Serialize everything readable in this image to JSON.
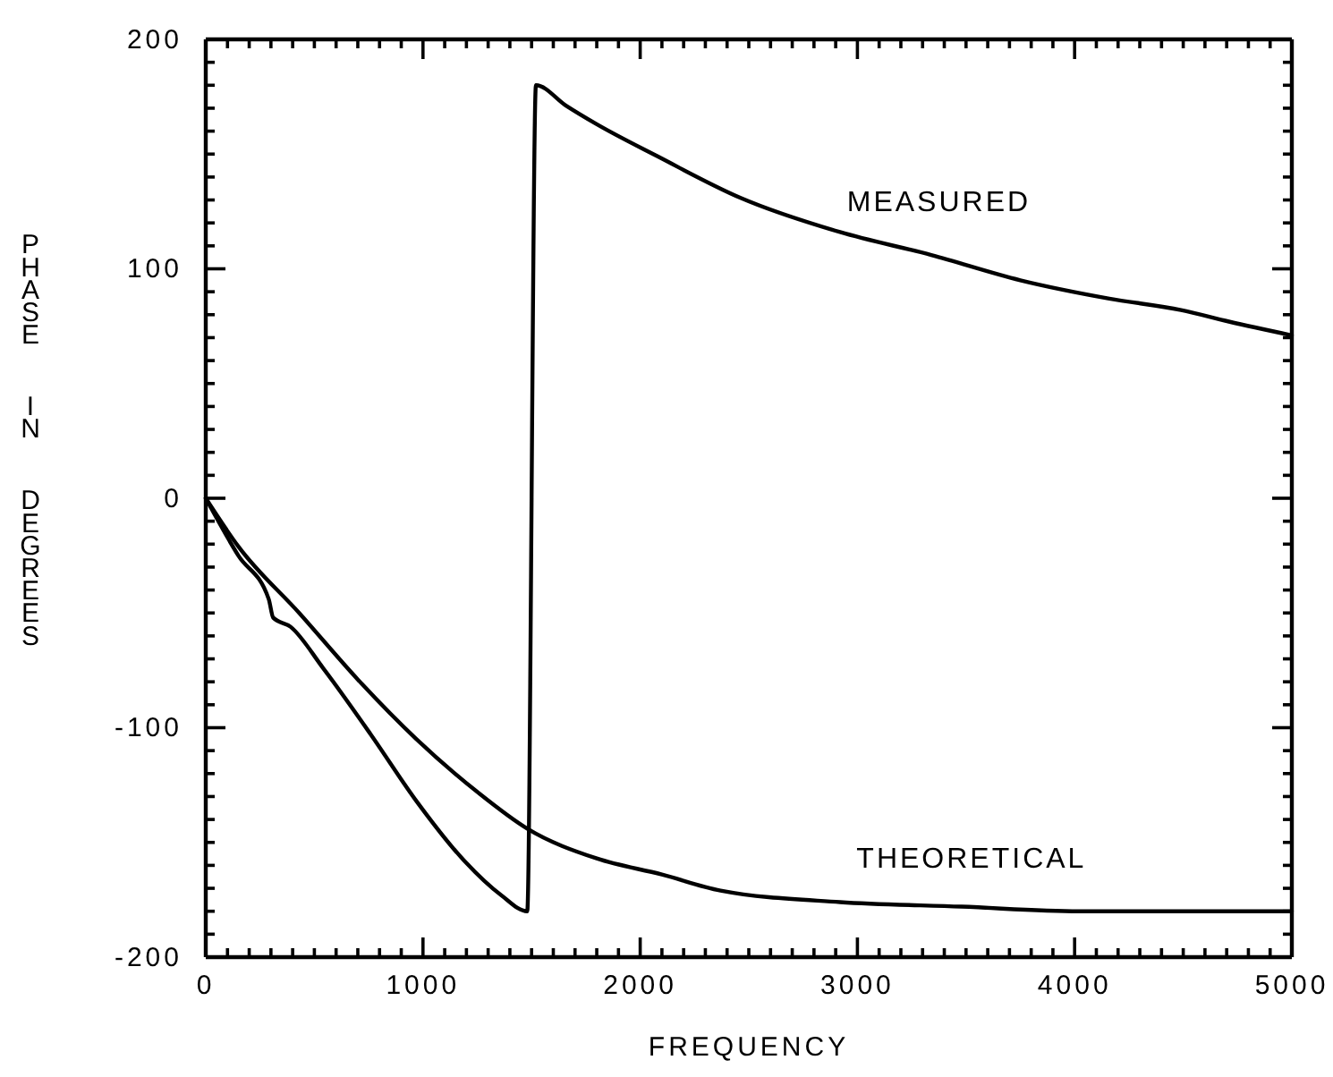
{
  "chart_data": {
    "type": "line",
    "xlabel": "FREQUENCY",
    "ylabel": "PHASE IN DEGREES",
    "xlim": [
      0,
      5000
    ],
    "ylim": [
      -200,
      200
    ],
    "xticks": [
      0,
      {
        "value": 100,
        "label": null
      },
      {
        "value": 200,
        "label": null
      },
      {
        "value": 300,
        "label": null
      },
      {
        "value": 400,
        "label": null
      },
      {
        "value": 500,
        "label": null
      },
      {
        "value": 600,
        "label": null
      },
      {
        "value": 700,
        "label": null
      },
      {
        "value": 800,
        "label": null
      },
      {
        "value": 900,
        "label": null
      },
      1000,
      {
        "value": 1100,
        "label": null
      },
      {
        "value": 1200,
        "label": null
      },
      {
        "value": 1300,
        "label": null
      },
      {
        "value": 1400,
        "label": null
      },
      {
        "value": 1500,
        "label": null
      },
      {
        "value": 1600,
        "label": null
      },
      {
        "value": 1700,
        "label": null
      },
      {
        "value": 1800,
        "label": null
      },
      {
        "value": 1900,
        "label": null
      },
      2000,
      {
        "value": 2100,
        "label": null
      },
      {
        "value": 2200,
        "label": null
      },
      {
        "value": 2300,
        "label": null
      },
      {
        "value": 2400,
        "label": null
      },
      {
        "value": 2500,
        "label": null
      },
      {
        "value": 2600,
        "label": null
      },
      {
        "value": 2700,
        "label": null
      },
      {
        "value": 2800,
        "label": null
      },
      {
        "value": 2900,
        "label": null
      },
      3000,
      {
        "value": 3100,
        "label": null
      },
      {
        "value": 3200,
        "label": null
      },
      {
        "value": 3300,
        "label": null
      },
      {
        "value": 3400,
        "label": null
      },
      {
        "value": 3500,
        "label": null
      },
      {
        "value": 3600,
        "label": null
      },
      {
        "value": 3700,
        "label": null
      },
      {
        "value": 3800,
        "label": null
      },
      {
        "value": 3900,
        "label": null
      },
      4000,
      {
        "value": 4100,
        "label": null
      },
      {
        "value": 4200,
        "label": null
      },
      {
        "value": 4300,
        "label": null
      },
      {
        "value": 4400,
        "label": null
      },
      {
        "value": 4500,
        "label": null
      },
      {
        "value": 4600,
        "label": null
      },
      {
        "value": 4700,
        "label": null
      },
      {
        "value": 4800,
        "label": null
      },
      {
        "value": 4900,
        "label": null
      },
      5000
    ],
    "yticks": [
      -200,
      {
        "value": -190,
        "label": null
      },
      {
        "value": -180,
        "label": null
      },
      {
        "value": -170,
        "label": null
      },
      {
        "value": -160,
        "label": null
      },
      {
        "value": -150,
        "label": null
      },
      {
        "value": -140,
        "label": null
      },
      {
        "value": -130,
        "label": null
      },
      {
        "value": -120,
        "label": null
      },
      {
        "value": -110,
        "label": null
      },
      -100,
      {
        "value": -90,
        "label": null
      },
      {
        "value": -80,
        "label": null
      },
      {
        "value": -70,
        "label": null
      },
      {
        "value": -60,
        "label": null
      },
      {
        "value": -50,
        "label": null
      },
      {
        "value": -40,
        "label": null
      },
      {
        "value": -30,
        "label": null
      },
      {
        "value": -20,
        "label": null
      },
      {
        "value": -10,
        "label": null
      },
      0,
      {
        "value": 10,
        "label": null
      },
      {
        "value": 20,
        "label": null
      },
      {
        "value": 30,
        "label": null
      },
      {
        "value": 40,
        "label": null
      },
      {
        "value": 50,
        "label": null
      },
      {
        "value": 60,
        "label": null
      },
      {
        "value": 70,
        "label": null
      },
      {
        "value": 80,
        "label": null
      },
      {
        "value": 90,
        "label": null
      },
      100,
      {
        "value": 110,
        "label": null
      },
      {
        "value": 120,
        "label": null
      },
      {
        "value": 130,
        "label": null
      },
      {
        "value": 140,
        "label": null
      },
      {
        "value": 150,
        "label": null
      },
      {
        "value": 160,
        "label": null
      },
      {
        "value": 170,
        "label": null
      },
      {
        "value": 180,
        "label": null
      },
      {
        "value": 190,
        "label": null
      },
      200
    ],
    "series": [
      {
        "name": "MEASURED",
        "color": "#000000",
        "x": [
          0,
          150,
          290,
          310,
          390,
          540,
          760,
          970,
          1190,
          1360,
          1480,
          1520,
          1660,
          1800,
          2080,
          2460,
          2920,
          3340,
          3750,
          4160,
          4490,
          4710,
          5000
        ],
        "values": [
          0,
          -25,
          -44,
          -52,
          -56,
          -74,
          -103,
          -132,
          -158,
          -173,
          -180,
          180,
          171,
          163,
          149,
          131,
          116,
          106,
          95,
          87,
          82,
          77,
          71
        ]
      },
      {
        "name": "THEORETICAL",
        "color": "#000000",
        "x": [
          0,
          150,
          430,
          700,
          970,
          1250,
          1480,
          1800,
          2100,
          2370,
          2920,
          3480,
          4020,
          4500,
          5000
        ],
        "values": [
          0,
          -21,
          -50,
          -79,
          -105,
          -128,
          -144,
          -157,
          -164,
          -171,
          -176,
          -178,
          -180,
          -180,
          -180
        ]
      }
    ]
  }
}
